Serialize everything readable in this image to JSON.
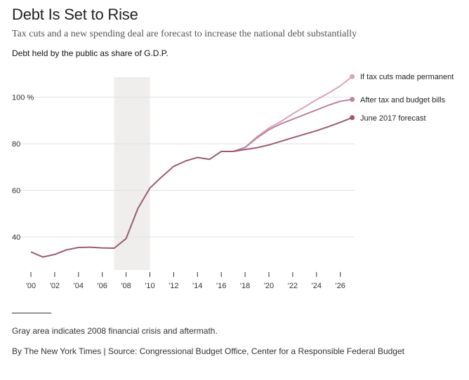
{
  "header": {
    "title": "Debt Is Set to Rise",
    "subtitle": "Tax cuts and a new spending deal are forecast to increase the national debt substantially"
  },
  "chart_label": "Debt held by the public as share of G.D.P.",
  "footer": {
    "note": "Gray area indicates 2008 financial crisis and aftermath.",
    "credit": "By The New York Times | Source: Congressional Budget Office, Center for a Responsible Federal Budget"
  },
  "colors": {
    "base": "#9c5a72",
    "mid": "#c080a0",
    "light": "#d9a3b8",
    "shade": "#efeeed",
    "axis": "#333333"
  },
  "chart_data": {
    "type": "line",
    "ylabel": "Debt held by the public as share of G.D.P.",
    "ylim": [
      30,
      110
    ],
    "xlim": [
      2000,
      2027
    ],
    "y_ticks": [
      {
        "value": 40,
        "label": "40"
      },
      {
        "value": 60,
        "label": "60"
      },
      {
        "value": 80,
        "label": "80"
      },
      {
        "value": 100,
        "label": "100 %"
      }
    ],
    "x_ticks": [
      {
        "value": 2000,
        "label": "'00"
      },
      {
        "value": 2002,
        "label": "'02"
      },
      {
        "value": 2004,
        "label": "'04"
      },
      {
        "value": 2006,
        "label": "'06"
      },
      {
        "value": 2008,
        "label": "'08"
      },
      {
        "value": 2010,
        "label": "'10"
      },
      {
        "value": 2012,
        "label": "'12"
      },
      {
        "value": 2014,
        "label": "'14"
      },
      {
        "value": 2016,
        "label": "'16"
      },
      {
        "value": 2018,
        "label": "'18"
      },
      {
        "value": 2020,
        "label": "'20"
      },
      {
        "value": 2022,
        "label": "'22"
      },
      {
        "value": 2024,
        "label": "'24"
      },
      {
        "value": 2026,
        "label": "'26"
      }
    ],
    "shaded_region": {
      "from": 2007,
      "to": 2010,
      "meaning": "2008 financial crisis and aftermath"
    },
    "history": {
      "x": [
        2000,
        2001,
        2002,
        2003,
        2004,
        2005,
        2006,
        2007,
        2008,
        2009,
        2010,
        2011,
        2012,
        2013,
        2014,
        2015,
        2016,
        2017
      ],
      "y": [
        33.6,
        31.4,
        32.5,
        34.5,
        35.5,
        35.6,
        35.3,
        35.2,
        39.3,
        52.3,
        61.0,
        65.8,
        70.3,
        72.6,
        74.1,
        73.3,
        76.7,
        76.7
      ]
    },
    "series": [
      {
        "name": "June 2017 forecast",
        "color_key": "base",
        "x": [
          2017,
          2018,
          2019,
          2020,
          2021,
          2022,
          2023,
          2024,
          2025,
          2026,
          2027
        ],
        "y": [
          76.7,
          77.5,
          78.3,
          79.5,
          81.0,
          82.6,
          84.1,
          85.6,
          87.3,
          89.2,
          91.2
        ]
      },
      {
        "name": "After tax and budget bills",
        "color_key": "mid",
        "x": [
          2017,
          2018,
          2019,
          2020,
          2021,
          2022,
          2023,
          2024,
          2025,
          2026,
          2027
        ],
        "y": [
          76.7,
          78.4,
          82.5,
          86.0,
          88.5,
          90.5,
          92.5,
          94.5,
          96.5,
          98.2,
          99.0
        ]
      },
      {
        "name": "If tax cuts made permanent",
        "color_key": "light",
        "x": [
          2017,
          2018,
          2019,
          2020,
          2021,
          2022,
          2023,
          2024,
          2025,
          2026,
          2027
        ],
        "y": [
          76.7,
          78.4,
          83.0,
          86.7,
          89.5,
          92.8,
          95.8,
          98.9,
          101.7,
          104.8,
          108.8
        ]
      }
    ]
  }
}
